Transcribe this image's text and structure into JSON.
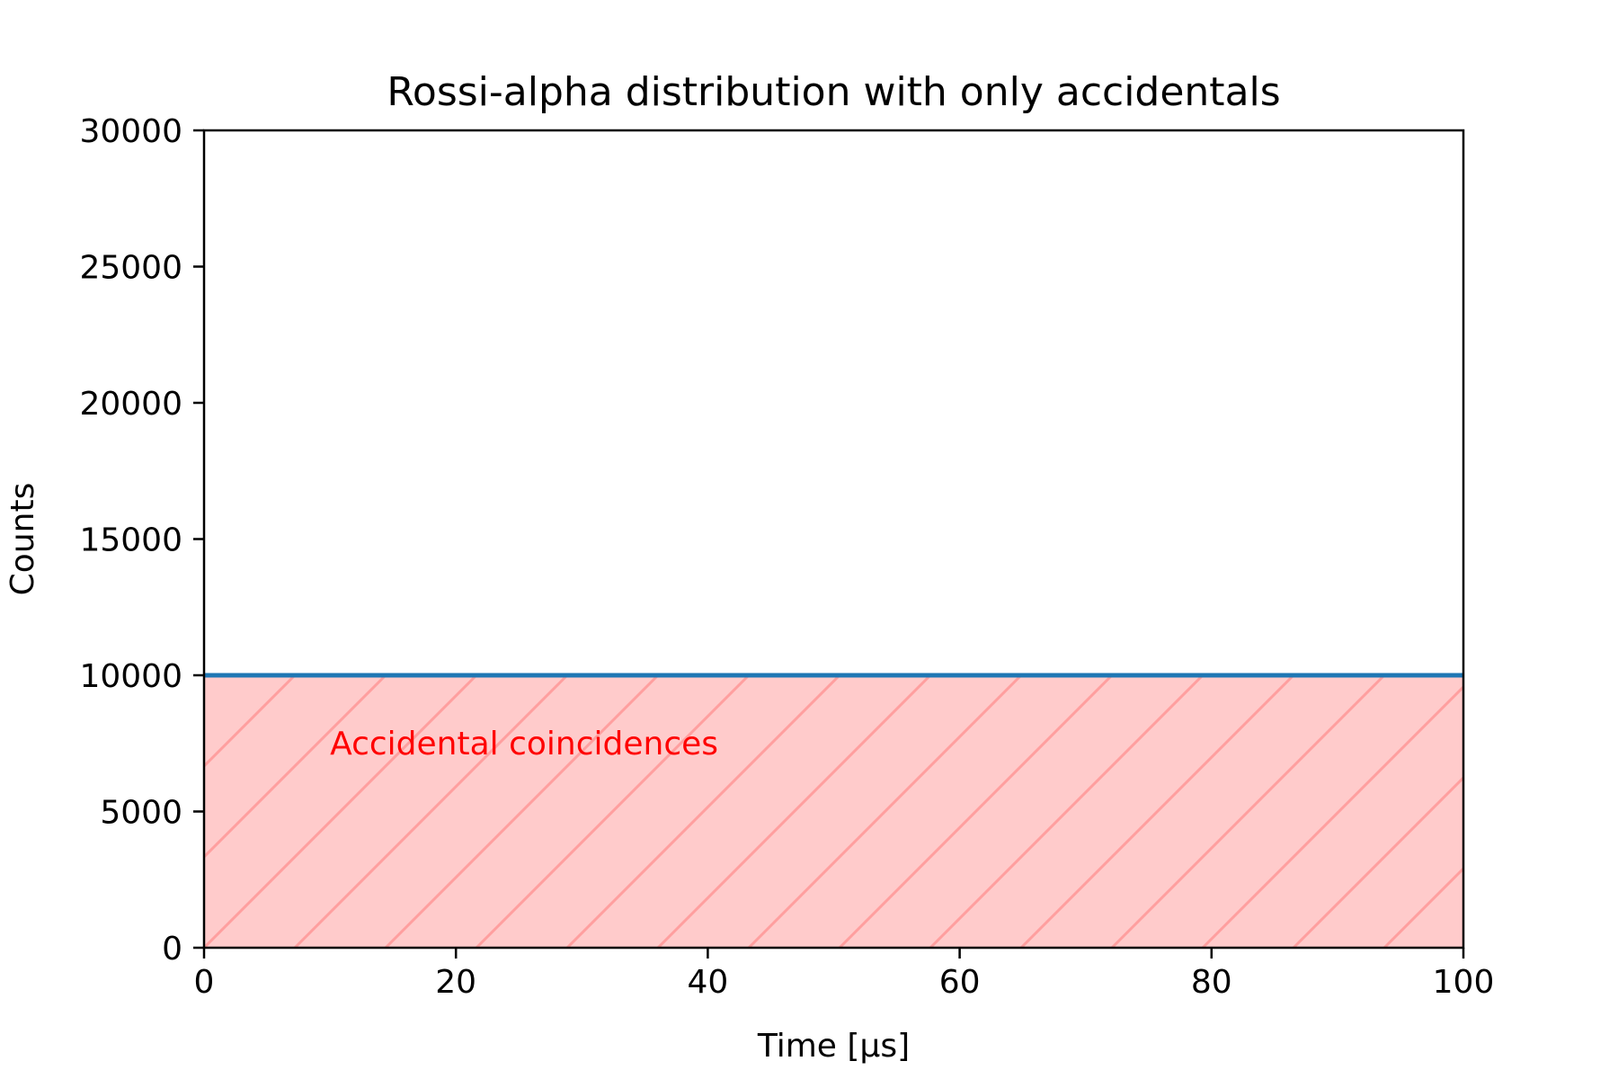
{
  "chart_data": {
    "type": "line",
    "title": "Rossi-alpha distribution with only accidentals",
    "xlabel": "Time [μs]",
    "ylabel": "Counts",
    "xlim": [
      0,
      100
    ],
    "ylim": [
      0,
      30000
    ],
    "x_ticks": [
      0,
      20,
      40,
      60,
      80,
      100
    ],
    "x_tick_labels": [
      "0",
      "20",
      "40",
      "60",
      "80",
      "100"
    ],
    "y_ticks": [
      0,
      5000,
      10000,
      15000,
      20000,
      25000,
      30000
    ],
    "y_tick_labels": [
      "0",
      "5000",
      "10000",
      "15000",
      "20000",
      "25000",
      "30000"
    ],
    "grid": false,
    "series": [
      {
        "x": [
          0,
          100
        ],
        "y": [
          10000,
          10000
        ],
        "color": "#1f77b4"
      }
    ],
    "fill": {
      "x_range": [
        0,
        100
      ],
      "y_range": [
        0,
        10000
      ],
      "color": "#ffcbcb",
      "hatch_color": "#ff9f9f",
      "hatch": "diagonal"
    },
    "annotations": [
      {
        "text": "Accidental coincidences",
        "x": 10,
        "y": 7500,
        "color": "#ff0000"
      }
    ]
  }
}
